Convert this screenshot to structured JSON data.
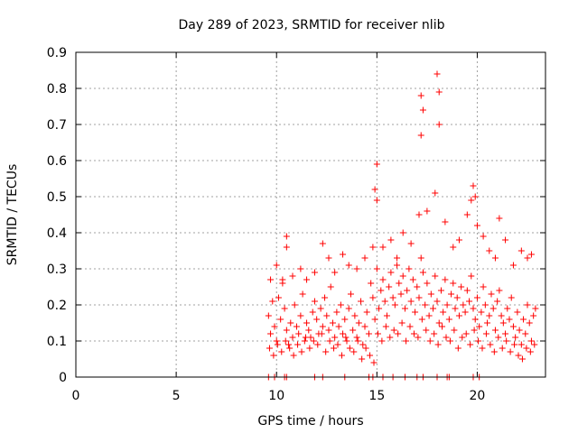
{
  "chart_data": {
    "type": "scatter",
    "title": "Day 289 of 2023, SRMTID for receiver nlib",
    "xlabel": "GPS time / hours",
    "ylabel": "SRMTID / TECUs",
    "xlim": [
      0,
      23.4
    ],
    "ylim": [
      0,
      0.9
    ],
    "xticks": [
      "0",
      "5",
      "10",
      "15",
      "20"
    ],
    "xtick_values": [
      0,
      5,
      10,
      15,
      20
    ],
    "yticks": [
      "0",
      "0.1",
      "0.2",
      "0.3",
      "0.4",
      "0.5",
      "0.6",
      "0.7",
      "0.8",
      "0.9"
    ],
    "ytick_values": [
      0,
      0.1,
      0.2,
      0.3,
      0.4,
      0.5,
      0.6,
      0.7,
      0.8,
      0.9
    ],
    "grid": true,
    "marker": "+",
    "marker_color": "#ff0000",
    "x_range_of_data": [
      9.6,
      22.9
    ],
    "series": [
      {
        "name": "SRMTID",
        "x": [
          9.6,
          9.7,
          9.8,
          9.9,
          10.0,
          10.1,
          10.2,
          10.3,
          10.4,
          10.5,
          10.6,
          10.7,
          10.8,
          10.9,
          11.0,
          11.1,
          11.2,
          11.3,
          11.4,
          11.5,
          11.6,
          11.7,
          11.8,
          11.9,
          12.0,
          12.1,
          12.2,
          12.3,
          12.4,
          12.5,
          12.6,
          12.7,
          12.8,
          12.9,
          13.0,
          13.1,
          13.2,
          13.3,
          13.4,
          13.5,
          13.6,
          13.7,
          13.8,
          13.9,
          14.0,
          14.1,
          14.2,
          14.3,
          14.4,
          14.5,
          14.6,
          14.7,
          14.8,
          14.9,
          15.0,
          15.1,
          15.2,
          15.3,
          15.4,
          15.5,
          15.6,
          15.7,
          15.8,
          15.9,
          16.0,
          16.1,
          16.2,
          16.3,
          16.4,
          16.5,
          16.6,
          16.7,
          16.8,
          16.9,
          17.0,
          17.1,
          17.2,
          17.3,
          17.4,
          17.5,
          17.6,
          17.7,
          17.8,
          17.9,
          18.0,
          18.1,
          18.2,
          18.3,
          18.4,
          18.5,
          18.6,
          18.7,
          18.8,
          18.9,
          19.0,
          19.1,
          19.2,
          19.3,
          19.4,
          19.5,
          19.6,
          19.7,
          19.8,
          19.9,
          20.0,
          20.1,
          20.2,
          20.3,
          20.4,
          20.5,
          20.6,
          20.7,
          20.8,
          20.9,
          21.0,
          21.1,
          21.2,
          21.3,
          21.4,
          21.5,
          21.6,
          21.7,
          21.8,
          21.9,
          22.0,
          22.1,
          22.2,
          22.3,
          22.4,
          22.5,
          22.6,
          22.7,
          22.8,
          22.9,
          9.65,
          9.85,
          10.05,
          10.25,
          10.45,
          10.65,
          10.85,
          11.05,
          11.25,
          11.45,
          11.65,
          11.85,
          12.05,
          12.25,
          12.45,
          12.65,
          12.85,
          13.05,
          13.25,
          13.45,
          13.65,
          13.85,
          14.05,
          14.25,
          14.45,
          14.65,
          14.85,
          15.05,
          15.25,
          15.45,
          15.65,
          15.85,
          16.05,
          16.25,
          16.45,
          16.65,
          16.85,
          17.05,
          17.25,
          17.45,
          17.65,
          17.85,
          18.05,
          18.25,
          18.45,
          18.65,
          18.85,
          19.05,
          19.25,
          19.45,
          19.65,
          19.85,
          20.05,
          20.25,
          20.45,
          20.65,
          20.85,
          21.05,
          21.25,
          21.45,
          21.65,
          21.85,
          22.05,
          22.25,
          22.45,
          22.65,
          22.85,
          9.7,
          10.0,
          10.3,
          10.5,
          10.5,
          10.8,
          11.2,
          11.5,
          11.9,
          12.3,
          12.6,
          12.9,
          13.3,
          13.6,
          14.0,
          14.4,
          14.8,
          14.9,
          15.0,
          15.0,
          15.3,
          15.7,
          16.0,
          16.3,
          16.7,
          17.1,
          17.2,
          17.2,
          17.3,
          17.5,
          17.9,
          18.0,
          18.1,
          18.1,
          18.4,
          18.8,
          19.1,
          19.5,
          19.7,
          19.8,
          19.9,
          20.0,
          20.3,
          20.6,
          20.9,
          21.1,
          21.4,
          21.8,
          22.2,
          22.5,
          22.7,
          9.6,
          9.9,
          10.4,
          10.5,
          11.9,
          12.3,
          13.4,
          14.6,
          14.8,
          15.3,
          15.8,
          16.4,
          17.0,
          17.3,
          18.0,
          18.5,
          18.6,
          19.8,
          20.1
        ],
        "y": [
          0.17,
          0.12,
          0.21,
          0.14,
          0.1,
          0.22,
          0.16,
          0.27,
          0.19,
          0.13,
          0.09,
          0.15,
          0.11,
          0.2,
          0.14,
          0.12,
          0.17,
          0.23,
          0.1,
          0.15,
          0.13,
          0.11,
          0.18,
          0.21,
          0.16,
          0.12,
          0.19,
          0.14,
          0.22,
          0.17,
          0.13,
          0.25,
          0.15,
          0.11,
          0.18,
          0.14,
          0.2,
          0.12,
          0.16,
          0.1,
          0.19,
          0.23,
          0.13,
          0.17,
          0.11,
          0.15,
          0.21,
          0.09,
          0.14,
          0.18,
          0.12,
          0.26,
          0.22,
          0.16,
          0.3,
          0.19,
          0.24,
          0.27,
          0.21,
          0.17,
          0.25,
          0.29,
          0.22,
          0.2,
          0.31,
          0.26,
          0.23,
          0.28,
          0.19,
          0.24,
          0.3,
          0.21,
          0.27,
          0.18,
          0.25,
          0.22,
          0.33,
          0.29,
          0.2,
          0.26,
          0.17,
          0.23,
          0.19,
          0.28,
          0.21,
          0.15,
          0.24,
          0.18,
          0.27,
          0.2,
          0.16,
          0.23,
          0.26,
          0.19,
          0.22,
          0.17,
          0.25,
          0.2,
          0.18,
          0.24,
          0.21,
          0.28,
          0.19,
          0.16,
          0.22,
          0.14,
          0.18,
          0.25,
          0.2,
          0.15,
          0.17,
          0.23,
          0.19,
          0.13,
          0.21,
          0.24,
          0.17,
          0.15,
          0.12,
          0.19,
          0.16,
          0.22,
          0.14,
          0.11,
          0.18,
          0.13,
          0.09,
          0.16,
          0.12,
          0.2,
          0.15,
          0.1,
          0.17,
          0.19,
          0.08,
          0.06,
          0.09,
          0.07,
          0.1,
          0.08,
          0.06,
          0.09,
          0.07,
          0.11,
          0.08,
          0.1,
          0.09,
          0.12,
          0.07,
          0.1,
          0.08,
          0.09,
          0.06,
          0.11,
          0.08,
          0.07,
          0.1,
          0.05,
          0.08,
          0.06,
          0.04,
          0.12,
          0.1,
          0.14,
          0.11,
          0.13,
          0.12,
          0.15,
          0.1,
          0.14,
          0.12,
          0.11,
          0.16,
          0.13,
          0.1,
          0.12,
          0.09,
          0.14,
          0.11,
          0.1,
          0.13,
          0.08,
          0.11,
          0.12,
          0.09,
          0.13,
          0.1,
          0.08,
          0.12,
          0.09,
          0.07,
          0.11,
          0.08,
          0.1,
          0.07,
          0.09,
          0.06,
          0.05,
          0.08,
          0.07,
          0.09,
          0.27,
          0.31,
          0.26,
          0.39,
          0.36,
          0.28,
          0.3,
          0.27,
          0.29,
          0.37,
          0.33,
          0.29,
          0.34,
          0.31,
          0.3,
          0.33,
          0.36,
          0.52,
          0.59,
          0.49,
          0.36,
          0.38,
          0.33,
          0.4,
          0.37,
          0.45,
          0.67,
          0.78,
          0.74,
          0.46,
          0.51,
          0.84,
          0.79,
          0.7,
          0.43,
          0.36,
          0.38,
          0.45,
          0.49,
          0.53,
          0.5,
          0.42,
          0.39,
          0.35,
          0.33,
          0.44,
          0.38,
          0.31,
          0.35,
          0.33,
          0.34,
          0.0,
          0.0,
          0.0,
          0.0,
          0.0,
          0.0,
          0.0,
          0.0,
          0.0,
          0.0,
          0.0,
          0.0,
          0.0,
          0.0,
          0.0,
          0.0,
          0.0,
          0.0,
          0.0
        ]
      }
    ]
  }
}
